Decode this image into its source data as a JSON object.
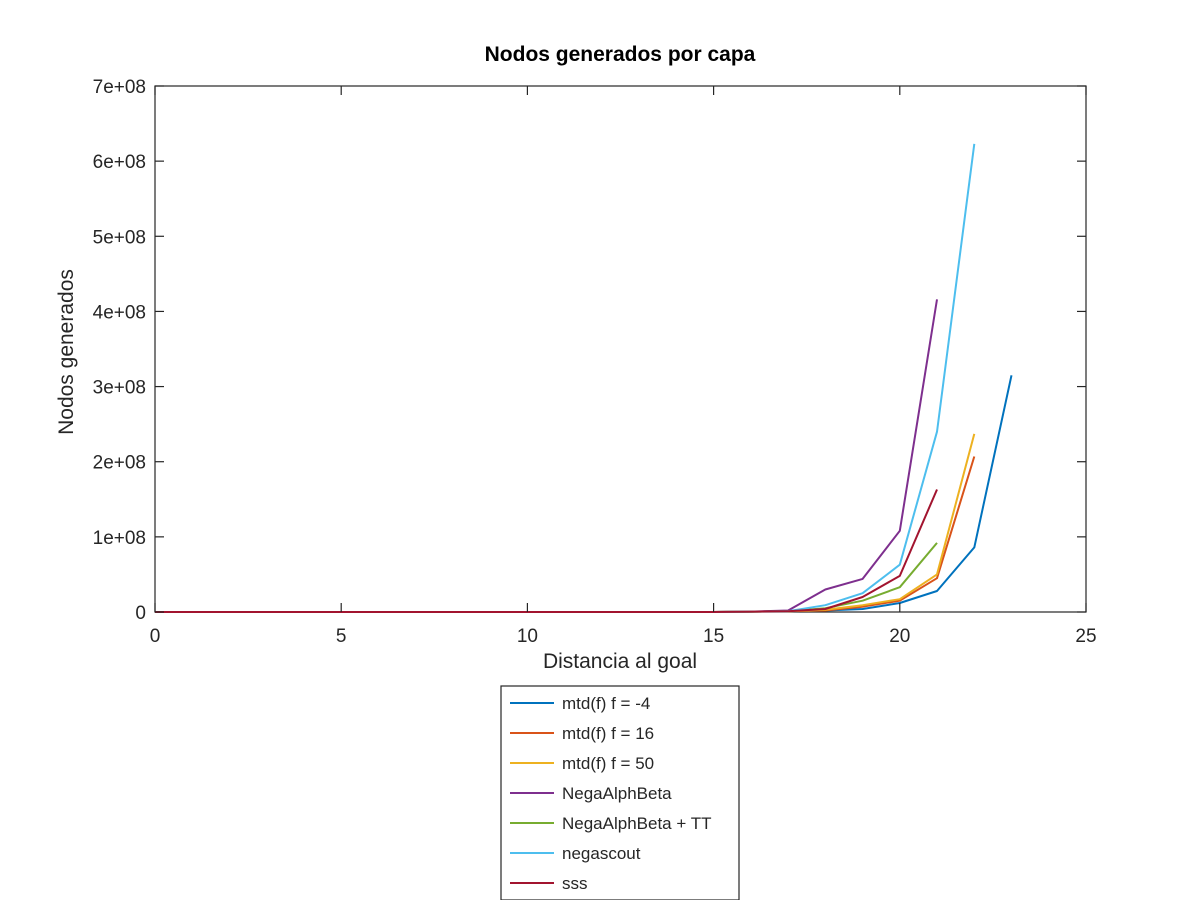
{
  "chart_data": {
    "type": "line",
    "title": "Nodos generados por capa",
    "xlabel": "Distancia al goal",
    "ylabel": "Nodos generados",
    "xlim": [
      0,
      25
    ],
    "ylim": [
      0,
      700000000
    ],
    "xticks": [
      0,
      5,
      10,
      15,
      20,
      25
    ],
    "xtick_labels": [
      "0",
      "5",
      "10",
      "15",
      "20",
      "25"
    ],
    "yticks": [
      0,
      100000000,
      200000000,
      300000000,
      400000000,
      500000000,
      600000000,
      700000000
    ],
    "ytick_labels": [
      "0",
      "1e+08",
      "2e+08",
      "3e+08",
      "4e+08",
      "5e+08",
      "6e+08",
      "7e+08"
    ],
    "grid": false,
    "legend_position": "below plot",
    "series": [
      {
        "name": "mtd(f) f = -4",
        "color": "#0072BD",
        "x": [
          0,
          15,
          16,
          17,
          18,
          19,
          20,
          21,
          22,
          23
        ],
        "y": [
          0,
          0,
          500000,
          1000000,
          2000000,
          4000000,
          12000000,
          28000000,
          86000000,
          315000000
        ]
      },
      {
        "name": "mtd(f) f = 16",
        "color": "#D95319",
        "x": [
          0,
          15,
          16,
          17,
          18,
          19,
          20,
          21,
          22
        ],
        "y": [
          0,
          0,
          500000,
          1000000,
          2000000,
          7000000,
          15000000,
          45000000,
          207000000
        ]
      },
      {
        "name": "mtd(f) f = 50",
        "color": "#EDB120",
        "x": [
          0,
          15,
          16,
          17,
          18,
          19,
          20,
          21,
          22
        ],
        "y": [
          0,
          0,
          500000,
          1000000,
          3000000,
          9000000,
          17000000,
          50000000,
          237000000
        ]
      },
      {
        "name": "NegaAlphBeta",
        "color": "#7E2F8E",
        "x": [
          0,
          15,
          16,
          17,
          18,
          19,
          20,
          21
        ],
        "y": [
          0,
          0,
          500000,
          2000000,
          30000000,
          44000000,
          108000000,
          416000000
        ]
      },
      {
        "name": "NegaAlphBeta + TT",
        "color": "#77AC30",
        "x": [
          0,
          15,
          16,
          17,
          18,
          19,
          20,
          21
        ],
        "y": [
          0,
          0,
          500000,
          1000000,
          5000000,
          15000000,
          33000000,
          92000000
        ]
      },
      {
        "name": "negascout",
        "color": "#4DBEEE",
        "x": [
          0,
          15,
          16,
          17,
          18,
          19,
          20,
          21,
          22
        ],
        "y": [
          0,
          0,
          500000,
          1000000,
          9000000,
          25000000,
          63000000,
          240000000,
          623000000
        ]
      },
      {
        "name": "sss",
        "color": "#A2142F",
        "x": [
          0,
          15,
          16,
          17,
          18,
          19,
          20,
          21
        ],
        "y": [
          0,
          0,
          500000,
          1000000,
          4000000,
          20000000,
          48000000,
          163000000
        ]
      }
    ]
  }
}
